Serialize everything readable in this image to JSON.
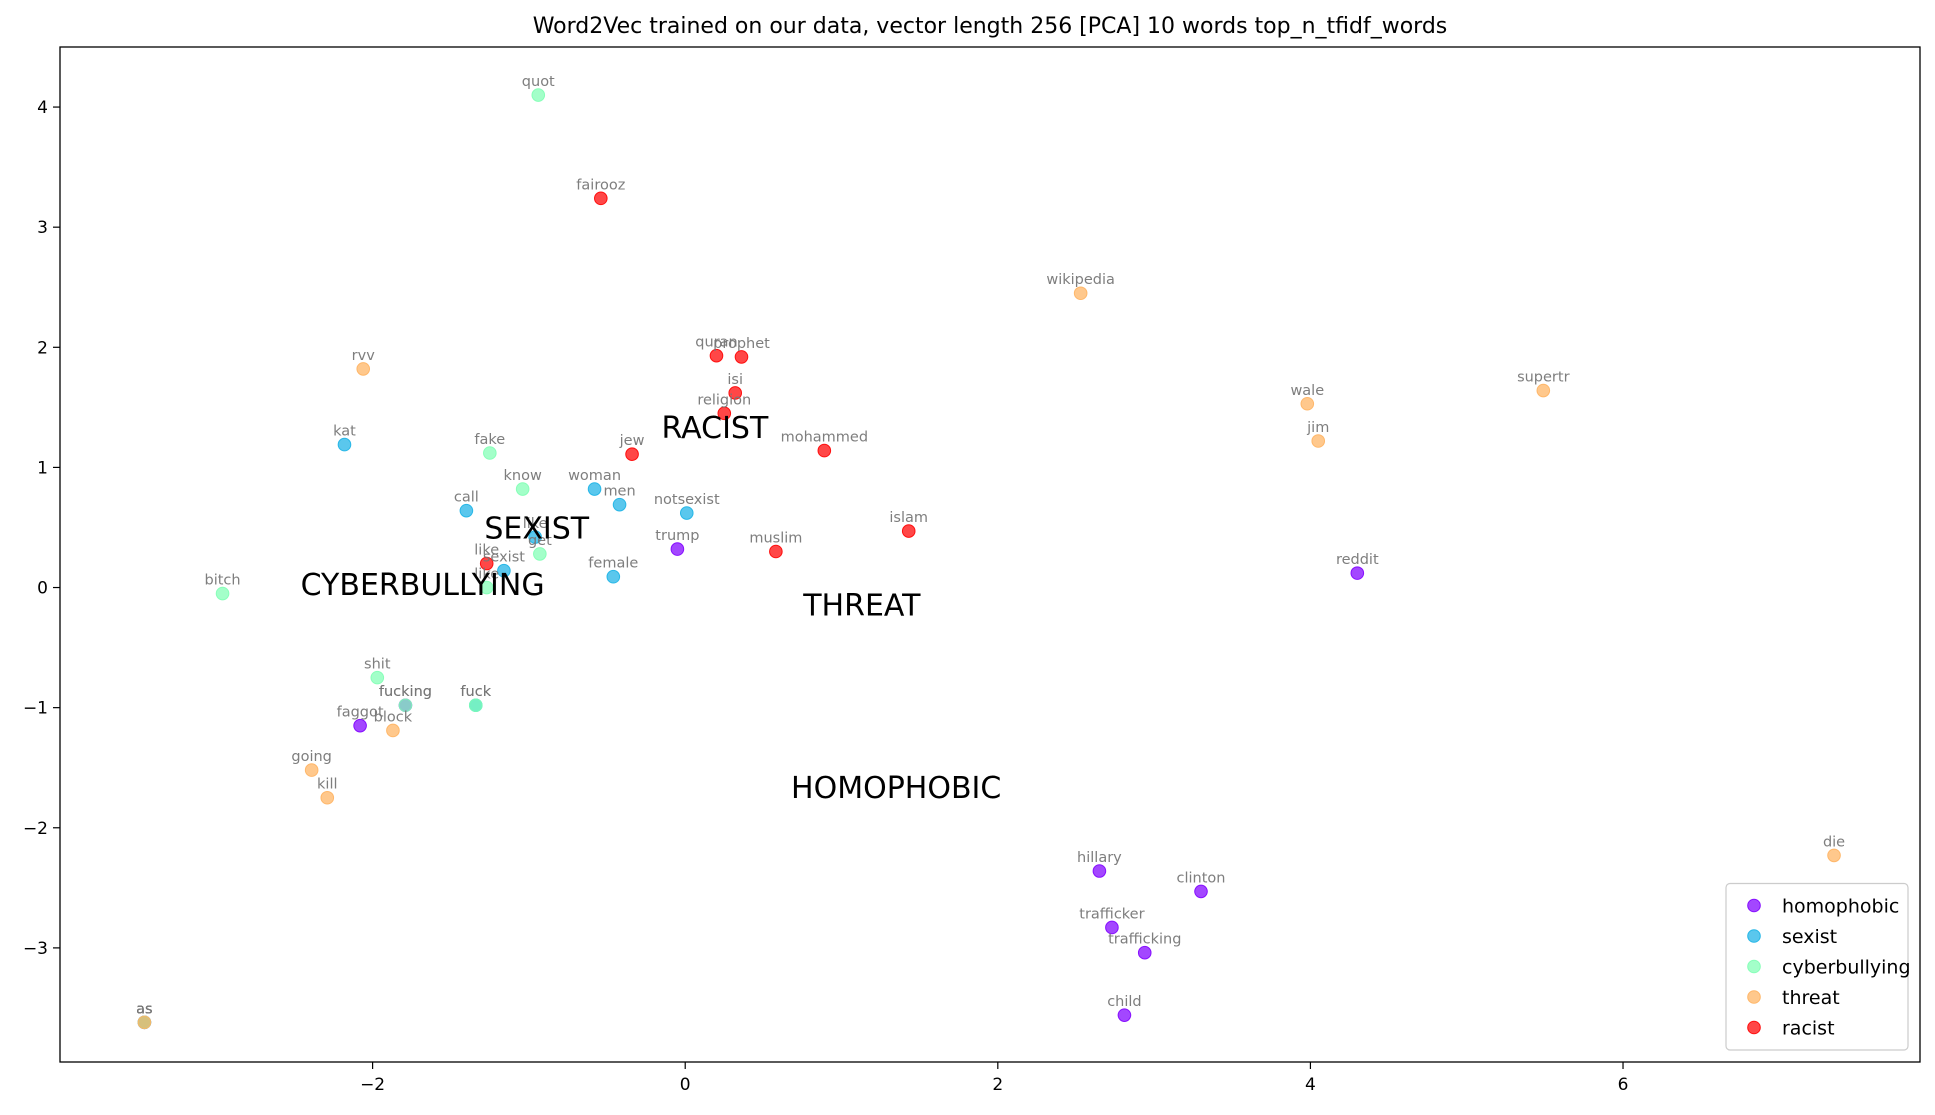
{
  "chart_data": {
    "type": "scatter",
    "title": "Word2Vec trained on our data, vector length 256 [PCA] 10 words top_n_tfidf_words",
    "xlabel": "",
    "ylabel": "",
    "xlim": [
      -4.0,
      7.9
    ],
    "ylim": [
      -3.95,
      4.5
    ],
    "xticks": [
      -2,
      0,
      2,
      4,
      6
    ],
    "yticks": [
      -3,
      -2,
      -1,
      0,
      1,
      2,
      3,
      4
    ],
    "grid": false,
    "legend_position": "bottom-right",
    "colors": {
      "homophobic": "#8000ff",
      "sexist": "#1ab2e6",
      "cyberbullying": "#80ffb4",
      "threat": "#ffb360",
      "racist": "#ff0000"
    },
    "series": [
      {
        "name": "homophobic",
        "points": [
          {
            "word": "trump",
            "x": -0.05,
            "y": 0.32
          },
          {
            "word": "reddit",
            "x": 4.3,
            "y": 0.12
          },
          {
            "word": "faggot",
            "x": -2.08,
            "y": -1.15
          },
          {
            "word": "hillary",
            "x": 2.65,
            "y": -2.36
          },
          {
            "word": "clinton",
            "x": 3.3,
            "y": -2.53
          },
          {
            "word": "trafficker",
            "x": 2.73,
            "y": -2.83
          },
          {
            "word": "trafficking",
            "x": 2.94,
            "y": -3.04
          },
          {
            "word": "child",
            "x": 2.81,
            "y": -3.56
          },
          {
            "word": "fucking",
            "x": -1.79,
            "y": -0.98
          },
          {
            "word": "as",
            "x": -3.46,
            "y": -3.62
          }
        ]
      },
      {
        "name": "sexist",
        "points": [
          {
            "word": "kat",
            "x": -2.18,
            "y": 1.19
          },
          {
            "word": "woman",
            "x": -0.58,
            "y": 0.82
          },
          {
            "word": "men",
            "x": -0.42,
            "y": 0.69
          },
          {
            "word": "notsexist",
            "x": 0.01,
            "y": 0.62
          },
          {
            "word": "call",
            "x": -1.4,
            "y": 0.64
          },
          {
            "word": "sexist",
            "x": -1.16,
            "y": 0.14
          },
          {
            "word": "female",
            "x": -0.46,
            "y": 0.09
          },
          {
            "word": "like",
            "x": -0.96,
            "y": 0.42
          },
          {
            "word": "fuck",
            "x": -1.34,
            "y": -0.98
          },
          {
            "word": "as",
            "x": -3.46,
            "y": -3.62
          }
        ]
      },
      {
        "name": "cyberbullying",
        "points": [
          {
            "word": "quot",
            "x": -0.94,
            "y": 4.1
          },
          {
            "word": "fake",
            "x": -1.25,
            "y": 1.12
          },
          {
            "word": "know",
            "x": -1.04,
            "y": 0.82
          },
          {
            "word": "get",
            "x": -0.93,
            "y": 0.28
          },
          {
            "word": "bitch",
            "x": -2.96,
            "y": -0.05
          },
          {
            "word": "shit",
            "x": -1.97,
            "y": -0.75
          },
          {
            "word": "fucking",
            "x": -1.79,
            "y": -0.98
          },
          {
            "word": "fuck",
            "x": -1.34,
            "y": -0.98
          },
          {
            "word": "like",
            "x": -1.27,
            "y": 0.0
          },
          {
            "word": "as",
            "x": -3.46,
            "y": -3.62
          }
        ]
      },
      {
        "name": "threat",
        "points": [
          {
            "word": "rvv",
            "x": -2.06,
            "y": 1.82
          },
          {
            "word": "wikipedia",
            "x": 2.53,
            "y": 2.45
          },
          {
            "word": "wale",
            "x": 3.98,
            "y": 1.53
          },
          {
            "word": "supertr",
            "x": 5.49,
            "y": 1.64
          },
          {
            "word": "jim",
            "x": 4.05,
            "y": 1.22
          },
          {
            "word": "block",
            "x": -1.87,
            "y": -1.19
          },
          {
            "word": "going",
            "x": -2.39,
            "y": -1.52
          },
          {
            "word": "kill",
            "x": -2.29,
            "y": -1.75
          },
          {
            "word": "die",
            "x": 7.35,
            "y": -2.23
          },
          {
            "word": "as",
            "x": -3.46,
            "y": -3.62
          }
        ]
      },
      {
        "name": "racist",
        "points": [
          {
            "word": "fairooz",
            "x": -0.54,
            "y": 3.24
          },
          {
            "word": "quran",
            "x": 0.2,
            "y": 1.93
          },
          {
            "word": "prophet",
            "x": 0.36,
            "y": 1.92
          },
          {
            "word": "isi",
            "x": 0.32,
            "y": 1.62
          },
          {
            "word": "religion",
            "x": 0.25,
            "y": 1.45
          },
          {
            "word": "jew",
            "x": -0.34,
            "y": 1.11
          },
          {
            "word": "mohammed",
            "x": 0.89,
            "y": 1.14
          },
          {
            "word": "islam",
            "x": 1.43,
            "y": 0.47
          },
          {
            "word": "muslim",
            "x": 0.58,
            "y": 0.3
          },
          {
            "word": "like",
            "x": -1.27,
            "y": 0.2
          }
        ]
      }
    ],
    "cluster_labels": [
      {
        "text": "RACIST",
        "x": 0.19,
        "y": 1.33
      },
      {
        "text": "SEXIST",
        "x": -0.95,
        "y": 0.49
      },
      {
        "text": "CYBERBULLYING",
        "x": -1.68,
        "y": 0.02
      },
      {
        "text": "THREAT",
        "x": 1.13,
        "y": -0.15
      },
      {
        "text": "HOMOPHOBIC",
        "x": 1.35,
        "y": -1.67
      }
    ]
  }
}
